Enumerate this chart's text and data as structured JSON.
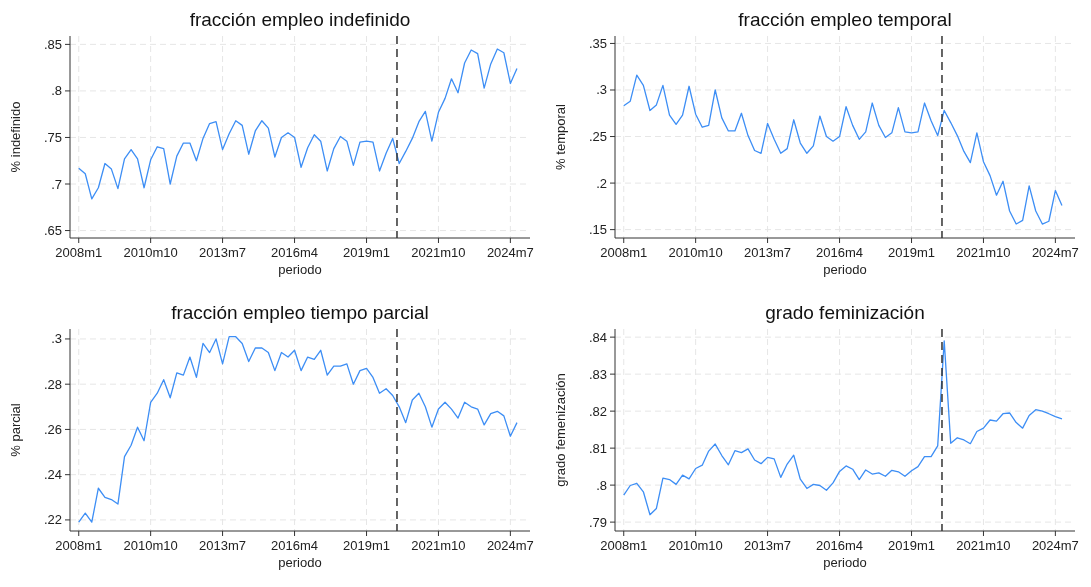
{
  "chart_data": [
    {
      "type": "line",
      "title": "fracción empleo indefinido",
      "xlabel": "periodo",
      "ylabel": "% indefinido",
      "grid": true,
      "line_style": "solid",
      "x": [
        "2008-01",
        "2008-04",
        "2008-07",
        "2008-10",
        "2009-01",
        "2009-04",
        "2009-07",
        "2009-10",
        "2010-01",
        "2010-04",
        "2010-07",
        "2010-10",
        "2011-01",
        "2011-04",
        "2011-07",
        "2011-10",
        "2012-01",
        "2012-04",
        "2012-07",
        "2012-10",
        "2013-01",
        "2013-04",
        "2013-07",
        "2013-10",
        "2014-01",
        "2014-04",
        "2014-07",
        "2014-10",
        "2015-01",
        "2015-04",
        "2015-07",
        "2015-10",
        "2016-01",
        "2016-04",
        "2016-07",
        "2016-10",
        "2017-01",
        "2017-04",
        "2017-07",
        "2017-10",
        "2018-01",
        "2018-04",
        "2018-07",
        "2018-10",
        "2019-01",
        "2019-04",
        "2019-07",
        "2019-10",
        "2020-01",
        "2020-04",
        "2020-07",
        "2020-10",
        "2021-01",
        "2021-04",
        "2021-07",
        "2021-10",
        "2022-01",
        "2022-04",
        "2022-07",
        "2022-10",
        "2023-01",
        "2023-04",
        "2023-07",
        "2023-10",
        "2024-01",
        "2024-04",
        "2024-07",
        "2024-10"
      ],
      "series": [
        {
          "color": "#3d8ef5",
          "values": [
            0.717,
            0.711,
            0.684,
            0.696,
            0.722,
            0.716,
            0.695,
            0.727,
            0.737,
            0.727,
            0.696,
            0.726,
            0.74,
            0.738,
            0.7,
            0.73,
            0.744,
            0.744,
            0.725,
            0.749,
            0.765,
            0.767,
            0.737,
            0.754,
            0.768,
            0.763,
            0.732,
            0.757,
            0.768,
            0.76,
            0.729,
            0.75,
            0.755,
            0.75,
            0.718,
            0.739,
            0.753,
            0.746,
            0.714,
            0.738,
            0.751,
            0.746,
            0.72,
            0.745,
            0.746,
            0.745,
            0.714,
            0.733,
            0.749,
            0.722,
            0.735,
            0.749,
            0.767,
            0.778,
            0.746,
            0.777,
            0.792,
            0.813,
            0.798,
            0.83,
            0.844,
            0.84,
            0.803,
            0.829,
            0.845,
            0.841,
            0.808,
            0.824
          ]
        }
      ],
      "xlim": [
        "2007-09",
        "2025-04"
      ],
      "xticks": [
        {
          "value": "2008-01",
          "label": "2008m1"
        },
        {
          "value": "2010-10",
          "label": "2010m10"
        },
        {
          "value": "2013-07",
          "label": "2013m7"
        },
        {
          "value": "2016-04",
          "label": "2016m4"
        },
        {
          "value": "2019-01",
          "label": "2019m1"
        },
        {
          "value": "2021-10",
          "label": "2021m10"
        },
        {
          "value": "2024-07",
          "label": "2024m7"
        }
      ],
      "ylim": [
        0.642,
        0.859
      ],
      "yticks": [
        {
          "value": 0.65,
          "label": ".65"
        },
        {
          "value": 0.7,
          "label": ".7"
        },
        {
          "value": 0.75,
          "label": ".75"
        },
        {
          "value": 0.8,
          "label": ".8"
        },
        {
          "value": 0.85,
          "label": ".85"
        }
      ],
      "ref_lines": [
        {
          "axis": "x",
          "value": "2020-03",
          "color": "#333333",
          "line_style": "dashed"
        }
      ]
    },
    {
      "type": "line",
      "title": "fracción empleo temporal",
      "xlabel": "periodo",
      "ylabel": "% temporal",
      "grid": true,
      "line_style": "solid",
      "x": [
        "2008-01",
        "2008-04",
        "2008-07",
        "2008-10",
        "2009-01",
        "2009-04",
        "2009-07",
        "2009-10",
        "2010-01",
        "2010-04",
        "2010-07",
        "2010-10",
        "2011-01",
        "2011-04",
        "2011-07",
        "2011-10",
        "2012-01",
        "2012-04",
        "2012-07",
        "2012-10",
        "2013-01",
        "2013-04",
        "2013-07",
        "2013-10",
        "2014-01",
        "2014-04",
        "2014-07",
        "2014-10",
        "2015-01",
        "2015-04",
        "2015-07",
        "2015-10",
        "2016-01",
        "2016-04",
        "2016-07",
        "2016-10",
        "2017-01",
        "2017-04",
        "2017-07",
        "2017-10",
        "2018-01",
        "2018-04",
        "2018-07",
        "2018-10",
        "2019-01",
        "2019-04",
        "2019-07",
        "2019-10",
        "2020-01",
        "2020-04",
        "2020-07",
        "2020-10",
        "2021-01",
        "2021-04",
        "2021-07",
        "2021-10",
        "2022-01",
        "2022-04",
        "2022-07",
        "2022-10",
        "2023-01",
        "2023-04",
        "2023-07",
        "2023-10",
        "2024-01",
        "2024-04",
        "2024-07",
        "2024-10"
      ],
      "series": [
        {
          "color": "#3d8ef5",
          "values": [
            0.283,
            0.288,
            0.316,
            0.305,
            0.278,
            0.284,
            0.305,
            0.273,
            0.263,
            0.273,
            0.304,
            0.274,
            0.26,
            0.262,
            0.3,
            0.27,
            0.256,
            0.256,
            0.275,
            0.251,
            0.235,
            0.232,
            0.264,
            0.247,
            0.232,
            0.237,
            0.268,
            0.243,
            0.232,
            0.24,
            0.272,
            0.25,
            0.245,
            0.25,
            0.282,
            0.262,
            0.247,
            0.255,
            0.286,
            0.262,
            0.249,
            0.254,
            0.281,
            0.255,
            0.254,
            0.255,
            0.286,
            0.267,
            0.251,
            0.278,
            0.265,
            0.251,
            0.234,
            0.222,
            0.254,
            0.223,
            0.208,
            0.187,
            0.202,
            0.17,
            0.156,
            0.16,
            0.197,
            0.17,
            0.156,
            0.159,
            0.192,
            0.176
          ]
        }
      ],
      "xlim": [
        "2007-09",
        "2025-04"
      ],
      "xticks": [
        {
          "value": "2008-01",
          "label": "2008m1"
        },
        {
          "value": "2010-10",
          "label": "2010m10"
        },
        {
          "value": "2013-07",
          "label": "2013m7"
        },
        {
          "value": "2016-04",
          "label": "2016m4"
        },
        {
          "value": "2019-01",
          "label": "2019m1"
        },
        {
          "value": "2021-10",
          "label": "2021m10"
        },
        {
          "value": "2024-07",
          "label": "2024m7"
        }
      ],
      "ylim": [
        0.141,
        0.358
      ],
      "yticks": [
        {
          "value": 0.15,
          "label": ".15"
        },
        {
          "value": 0.2,
          "label": ".2"
        },
        {
          "value": 0.25,
          "label": ".25"
        },
        {
          "value": 0.3,
          "label": ".3"
        },
        {
          "value": 0.35,
          "label": ".35"
        }
      ],
      "ref_lines": [
        {
          "axis": "x",
          "value": "2020-03",
          "color": "#333333",
          "line_style": "dashed"
        }
      ]
    },
    {
      "type": "line",
      "title": "fracción empleo tiempo parcial",
      "xlabel": "periodo",
      "ylabel": "% parcial",
      "grid": true,
      "line_style": "solid",
      "x": [
        "2008-01",
        "2008-04",
        "2008-07",
        "2008-10",
        "2009-01",
        "2009-04",
        "2009-07",
        "2009-10",
        "2010-01",
        "2010-04",
        "2010-07",
        "2010-10",
        "2011-01",
        "2011-04",
        "2011-07",
        "2011-10",
        "2012-01",
        "2012-04",
        "2012-07",
        "2012-10",
        "2013-01",
        "2013-04",
        "2013-07",
        "2013-10",
        "2014-01",
        "2014-04",
        "2014-07",
        "2014-10",
        "2015-01",
        "2015-04",
        "2015-07",
        "2015-10",
        "2016-01",
        "2016-04",
        "2016-07",
        "2016-10",
        "2017-01",
        "2017-04",
        "2017-07",
        "2017-10",
        "2018-01",
        "2018-04",
        "2018-07",
        "2018-10",
        "2019-01",
        "2019-04",
        "2019-07",
        "2019-10",
        "2020-01",
        "2020-04",
        "2020-07",
        "2020-10",
        "2021-01",
        "2021-04",
        "2021-07",
        "2021-10",
        "2022-01",
        "2022-04",
        "2022-07",
        "2022-10",
        "2023-01",
        "2023-04",
        "2023-07",
        "2023-10",
        "2024-01",
        "2024-04",
        "2024-07",
        "2024-10"
      ],
      "series": [
        {
          "color": "#3d8ef5",
          "values": [
            0.219,
            0.223,
            0.219,
            0.234,
            0.23,
            0.229,
            0.227,
            0.248,
            0.253,
            0.261,
            0.255,
            0.272,
            0.276,
            0.282,
            0.274,
            0.285,
            0.284,
            0.292,
            0.283,
            0.298,
            0.294,
            0.3,
            0.289,
            0.301,
            0.301,
            0.298,
            0.29,
            0.296,
            0.296,
            0.294,
            0.286,
            0.294,
            0.292,
            0.295,
            0.286,
            0.292,
            0.291,
            0.295,
            0.284,
            0.288,
            0.288,
            0.289,
            0.28,
            0.286,
            0.287,
            0.283,
            0.276,
            0.278,
            0.275,
            0.27,
            0.263,
            0.273,
            0.276,
            0.27,
            0.261,
            0.269,
            0.272,
            0.269,
            0.265,
            0.272,
            0.27,
            0.269,
            0.262,
            0.267,
            0.268,
            0.266,
            0.257,
            0.263
          ]
        }
      ],
      "xlim": [
        "2007-09",
        "2025-04"
      ],
      "xticks": [
        {
          "value": "2008-01",
          "label": "2008m1"
        },
        {
          "value": "2010-10",
          "label": "2010m10"
        },
        {
          "value": "2013-07",
          "label": "2013m7"
        },
        {
          "value": "2016-04",
          "label": "2016m4"
        },
        {
          "value": "2019-01",
          "label": "2019m1"
        },
        {
          "value": "2021-10",
          "label": "2021m10"
        },
        {
          "value": "2024-07",
          "label": "2024m7"
        }
      ],
      "ylim": [
        0.2151,
        0.3044
      ],
      "yticks": [
        {
          "value": 0.22,
          "label": ".22"
        },
        {
          "value": 0.24,
          "label": ".24"
        },
        {
          "value": 0.26,
          "label": ".26"
        },
        {
          "value": 0.28,
          "label": ".28"
        },
        {
          "value": 0.3,
          "label": ".3"
        }
      ],
      "ref_lines": [
        {
          "axis": "x",
          "value": "2020-03",
          "color": "#333333",
          "line_style": "dashed"
        }
      ]
    },
    {
      "type": "line",
      "title": "grado feminización",
      "xlabel": "periodo",
      "ylabel": "grado femenización",
      "grid": true,
      "line_style": "solid",
      "x": [
        "2008-01",
        "2008-04",
        "2008-07",
        "2008-10",
        "2009-01",
        "2009-04",
        "2009-07",
        "2009-10",
        "2010-01",
        "2010-04",
        "2010-07",
        "2010-10",
        "2011-01",
        "2011-04",
        "2011-07",
        "2011-10",
        "2012-01",
        "2012-04",
        "2012-07",
        "2012-10",
        "2013-01",
        "2013-04",
        "2013-07",
        "2013-10",
        "2014-01",
        "2014-04",
        "2014-07",
        "2014-10",
        "2015-01",
        "2015-04",
        "2015-07",
        "2015-10",
        "2016-01",
        "2016-04",
        "2016-07",
        "2016-10",
        "2017-01",
        "2017-04",
        "2017-07",
        "2017-10",
        "2018-01",
        "2018-04",
        "2018-07",
        "2018-10",
        "2019-01",
        "2019-04",
        "2019-07",
        "2019-10",
        "2020-01",
        "2020-04",
        "2020-07",
        "2020-10",
        "2021-01",
        "2021-04",
        "2021-07",
        "2021-10",
        "2022-01",
        "2022-04",
        "2022-07",
        "2022-10",
        "2023-01",
        "2023-04",
        "2023-07",
        "2023-10",
        "2024-01",
        "2024-04",
        "2024-07",
        "2024-10"
      ],
      "series": [
        {
          "color": "#3d8ef5",
          "values": [
            0.7973,
            0.7999,
            0.8005,
            0.7982,
            0.792,
            0.7937,
            0.8019,
            0.8015,
            0.8002,
            0.8027,
            0.8017,
            0.8045,
            0.8054,
            0.8092,
            0.8111,
            0.808,
            0.8055,
            0.8093,
            0.8088,
            0.8098,
            0.8068,
            0.8058,
            0.8075,
            0.8071,
            0.8021,
            0.8057,
            0.8081,
            0.8016,
            0.7991,
            0.8002,
            0.7999,
            0.7986,
            0.8006,
            0.8037,
            0.8052,
            0.8043,
            0.8015,
            0.8041,
            0.803,
            0.8033,
            0.8024,
            0.804,
            0.8036,
            0.8024,
            0.8039,
            0.805,
            0.8077,
            0.8077,
            0.8106,
            0.839,
            0.8113,
            0.8128,
            0.8122,
            0.8112,
            0.8145,
            0.8154,
            0.8176,
            0.8173,
            0.8193,
            0.8195,
            0.8169,
            0.8154,
            0.8188,
            0.8204,
            0.82,
            0.8193,
            0.8185,
            0.8179
          ]
        }
      ],
      "xlim": [
        "2007-09",
        "2025-04"
      ],
      "xticks": [
        {
          "value": "2008-01",
          "label": "2008m1"
        },
        {
          "value": "2010-10",
          "label": "2010m10"
        },
        {
          "value": "2013-07",
          "label": "2013m7"
        },
        {
          "value": "2016-04",
          "label": "2016m4"
        },
        {
          "value": "2019-01",
          "label": "2019m1"
        },
        {
          "value": "2021-10",
          "label": "2021m10"
        },
        {
          "value": "2024-07",
          "label": "2024m7"
        }
      ],
      "ylim": [
        0.7876,
        0.8422
      ],
      "yticks": [
        {
          "value": 0.79,
          "label": ".79"
        },
        {
          "value": 0.8,
          "label": ".8"
        },
        {
          "value": 0.81,
          "label": ".81"
        },
        {
          "value": 0.82,
          "label": ".82"
        },
        {
          "value": 0.83,
          "label": ".83"
        },
        {
          "value": 0.84,
          "label": ".84"
        }
      ],
      "ref_lines": [
        {
          "axis": "x",
          "value": "2020-03",
          "color": "#333333",
          "line_style": "dashed"
        }
      ]
    }
  ]
}
